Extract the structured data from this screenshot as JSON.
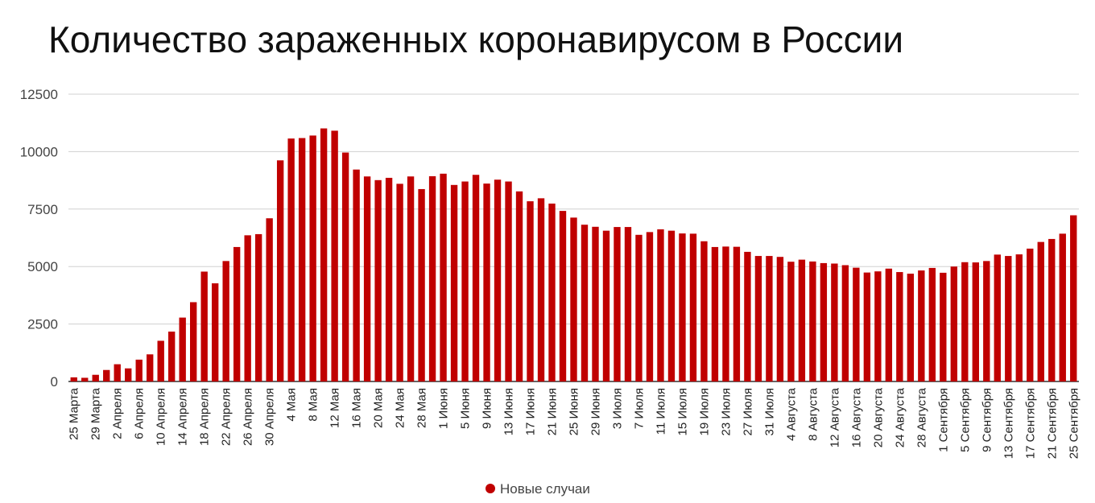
{
  "chart_data": {
    "type": "bar",
    "title": "Количество зараженных коронавирусом в России",
    "xlabel": "",
    "ylabel": "",
    "ylim": [
      0,
      12500
    ],
    "yticks": [
      0,
      2500,
      5000,
      7500,
      10000,
      12500
    ],
    "grid": true,
    "legend_position": "bottom",
    "x_tick_labels": [
      "25 Марта",
      "29 Марта",
      "2 Апреля",
      "6 Апреля",
      "10 Апреля",
      "14 Апреля",
      "18 Апреля",
      "22 Апреля",
      "26 Апреля",
      "30 Апреля",
      "4 Мая",
      "8 Мая",
      "12 Мая",
      "16 Мая",
      "20 Мая",
      "24 Мая",
      "28 Мая",
      "1 Июня",
      "5 Июня",
      "9 Июня",
      "13 Июня",
      "17 Июня",
      "21 Июня",
      "25 Июня",
      "29 Июня",
      "3 Июля",
      "7 Июля",
      "11 Июля",
      "15 Июля",
      "19 Июля",
      "23 Июля",
      "27 Июля",
      "31 Июля",
      "4 Августа",
      "8 Августа",
      "12 Августа",
      "16 Августа",
      "20 Августа",
      "24 Августа",
      "28 Августа",
      "1 Сентября",
      "5 Сентября",
      "9 Сентября",
      "13 Сентября",
      "17 Сентября",
      "21 Сентября",
      "25 Сентября"
    ],
    "series": [
      {
        "name": "Новые случаи",
        "color": "#c00000",
        "values": [
          180,
          160,
          290,
          500,
          750,
          570,
          950,
          1180,
          1770,
          2170,
          2780,
          3450,
          4780,
          4270,
          5240,
          5850,
          6360,
          6410,
          7100,
          9620,
          10570,
          10590,
          10700,
          11010,
          10910,
          9960,
          9220,
          8920,
          8760,
          8860,
          8600,
          8920,
          8370,
          8930,
          9040,
          8550,
          8700,
          8990,
          8610,
          8780,
          8700,
          8270,
          7840,
          7970,
          7740,
          7420,
          7130,
          6820,
          6730,
          6560,
          6720,
          6720,
          6380,
          6500,
          6620,
          6560,
          6440,
          6430,
          6100,
          5850,
          5870,
          5860,
          5640,
          5460,
          5460,
          5420,
          5210,
          5300,
          5220,
          5150,
          5130,
          5060,
          4950,
          4740,
          4790,
          4910,
          4760,
          4690,
          4830,
          4940,
          4730,
          5000,
          5190,
          5180,
          5240,
          5520,
          5460,
          5530,
          5780,
          6070,
          6200,
          6430,
          7230
        ]
      }
    ]
  }
}
